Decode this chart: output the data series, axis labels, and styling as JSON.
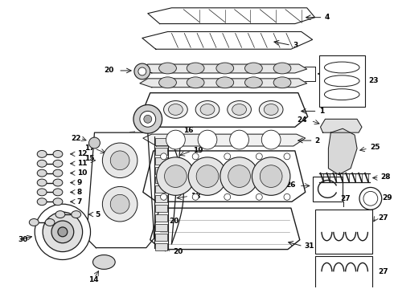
{
  "bg": "#ffffff",
  "lc": "#1a1a1a",
  "tc": "#000000",
  "fw": 4.9,
  "fh": 3.6,
  "dpi": 100
}
